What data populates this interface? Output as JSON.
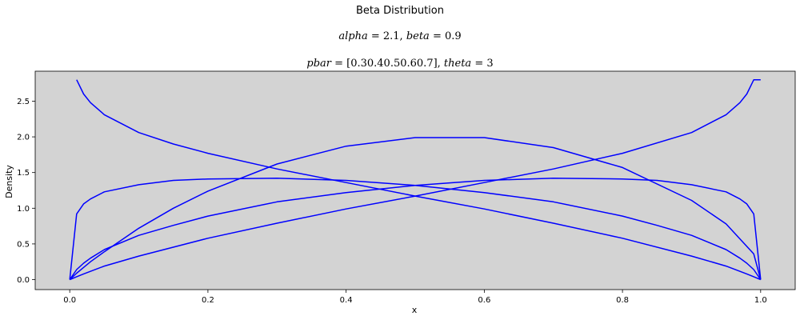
{
  "chart_data": {
    "type": "line",
    "title": "Beta Distribution",
    "subtitle_1": "alpha = 2.1, beta = 0.9",
    "subtitle_2": "pbar = [0.30.40.50.60.7], theta = 3",
    "subtitle_1_parts": {
      "a_name": "alpha",
      "a_eq": " = 2.1, ",
      "b_name": "beta",
      "b_eq": " = 0.9"
    },
    "subtitle_2_parts": {
      "p_name": "pbar",
      "p_eq": " = [0.30.40.50.60.7], ",
      "t_name": "theta",
      "t_eq": " = 3"
    },
    "xlabel": "x",
    "ylabel": "Density",
    "xlim": [
      -0.05,
      1.05
    ],
    "ylim": [
      -0.14,
      2.92
    ],
    "xticks": [
      0.0,
      0.2,
      0.4,
      0.6,
      0.8,
      1.0
    ],
    "xtick_labels": [
      "0.0",
      "0.2",
      "0.4",
      "0.6",
      "0.8",
      "1.0"
    ],
    "yticks": [
      0.0,
      0.5,
      1.0,
      1.5,
      2.0,
      2.5
    ],
    "ytick_labels": [
      "0.0",
      "0.5",
      "1.0",
      "1.5",
      "2.0",
      "2.5"
    ],
    "grid": false,
    "background_color": "#d3d3d3",
    "line_color": "#0000ff",
    "series": [
      {
        "x": [
          0,
          0.01,
          0.02,
          0.03,
          0.05,
          0.1,
          0.15,
          0.2,
          0.3,
          0.4,
          0.5,
          0.6,
          0.7,
          0.8,
          0.9,
          0.95,
          0.99,
          1.0
        ],
        "values": [
          0.0,
          0.09,
          0.17,
          0.25,
          0.39,
          0.72,
          1.0,
          1.24,
          1.62,
          1.87,
          1.99,
          1.99,
          1.85,
          1.57,
          1.11,
          0.78,
          0.36,
          0.0
        ]
      },
      {
        "x": [
          0.01,
          0.02,
          0.03,
          0.05,
          0.1,
          0.15,
          0.2,
          0.3,
          0.4,
          0.5,
          0.6,
          0.7,
          0.8,
          0.9,
          0.95,
          0.98,
          0.99,
          1.0
        ],
        "values": [
          2.8,
          2.6,
          2.48,
          2.31,
          2.06,
          1.9,
          1.77,
          1.55,
          1.36,
          1.17,
          0.99,
          0.79,
          0.58,
          0.33,
          0.19,
          0.08,
          0.04,
          0.0
        ]
      },
      {
        "x": [
          0.0,
          0.01,
          0.02,
          0.03,
          0.05,
          0.1,
          0.15,
          0.2,
          0.3,
          0.4,
          0.5,
          0.6,
          0.7,
          0.8,
          0.85,
          0.9,
          0.95,
          0.97,
          0.98,
          0.99,
          1.0
        ],
        "values": [
          0.0,
          0.92,
          1.06,
          1.13,
          1.23,
          1.33,
          1.39,
          1.41,
          1.42,
          1.39,
          1.32,
          1.22,
          1.09,
          0.89,
          0.76,
          0.62,
          0.42,
          0.3,
          0.23,
          0.14,
          0.0
        ]
      },
      {
        "x": [
          0.0,
          0.01,
          0.02,
          0.03,
          0.05,
          0.1,
          0.15,
          0.2,
          0.3,
          0.4,
          0.5,
          0.6,
          0.7,
          0.8,
          0.85,
          0.9,
          0.95,
          0.97,
          0.98,
          0.99,
          1.0
        ],
        "values": [
          0.0,
          0.14,
          0.23,
          0.3,
          0.42,
          0.62,
          0.76,
          0.89,
          1.09,
          1.22,
          1.32,
          1.39,
          1.42,
          1.41,
          1.39,
          1.33,
          1.23,
          1.13,
          1.06,
          0.92,
          0.0
        ]
      },
      {
        "x": [
          0.0,
          0.01,
          0.02,
          0.05,
          0.1,
          0.2,
          0.3,
          0.4,
          0.5,
          0.6,
          0.7,
          0.8,
          0.9,
          0.95,
          0.97,
          0.98,
          0.99,
          1.0
        ],
        "values": [
          0.0,
          0.04,
          0.08,
          0.19,
          0.33,
          0.58,
          0.79,
          0.99,
          1.17,
          1.36,
          1.55,
          1.77,
          2.06,
          2.31,
          2.48,
          2.6,
          2.8,
          2.8
        ]
      }
    ]
  }
}
